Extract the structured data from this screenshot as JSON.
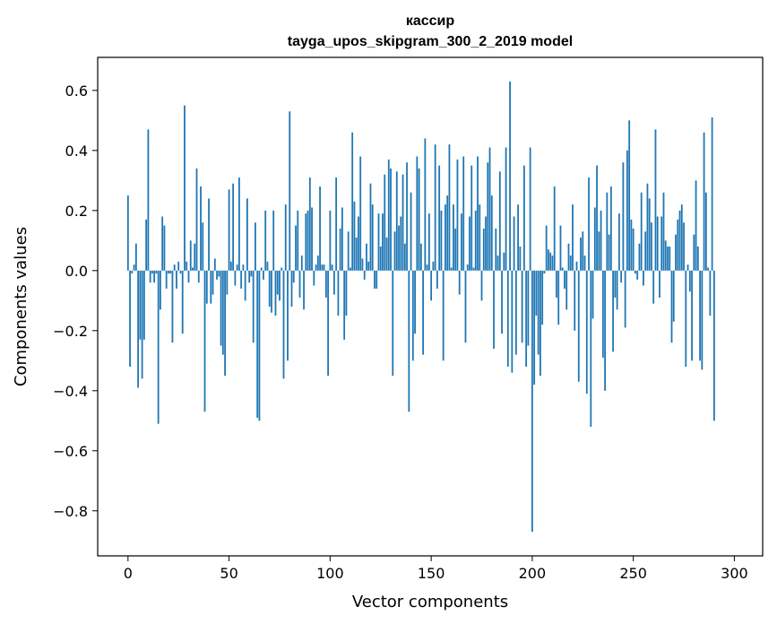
{
  "chart_data": {
    "type": "bar",
    "title": "кассир",
    "subtitle": "tayga_upos_skipgram_300_2_2019 model",
    "xlabel": "Vector components",
    "ylabel": "Components values",
    "xlim": [
      -15,
      314
    ],
    "ylim": [
      -0.95,
      0.71
    ],
    "xticks": [
      0,
      50,
      100,
      150,
      200,
      250,
      300
    ],
    "yticks": [
      -0.8,
      -0.6,
      -0.4,
      -0.2,
      0.0,
      0.2,
      0.4,
      0.6
    ],
    "ytick_labels": [
      "−0.8",
      "−0.6",
      "−0.4",
      "−0.2",
      "0.0",
      "0.2",
      "0.4",
      "0.6"
    ],
    "grid": false,
    "bar_color": "#1f77b4",
    "values": [
      0.25,
      -0.32,
      -0.01,
      0.02,
      0.09,
      -0.39,
      -0.23,
      -0.36,
      -0.23,
      0.17,
      0.47,
      -0.04,
      -0.01,
      -0.04,
      -0.01,
      -0.51,
      -0.13,
      0.18,
      0.15,
      -0.06,
      -0.01,
      -0.01,
      -0.24,
      0.02,
      -0.06,
      0.03,
      -0.01,
      -0.21,
      0.55,
      0.03,
      -0.04,
      0.1,
      0.01,
      0.09,
      0.34,
      -0.04,
      0.28,
      0.16,
      -0.47,
      -0.11,
      0.24,
      -0.11,
      -0.08,
      0.04,
      -0.03,
      -0.02,
      -0.25,
      -0.28,
      -0.35,
      -0.08,
      0.27,
      0.03,
      0.29,
      -0.05,
      0.02,
      0.31,
      -0.06,
      0.02,
      -0.1,
      0.24,
      -0.04,
      -0.02,
      -0.24,
      0.16,
      -0.49,
      -0.5,
      0.01,
      -0.03,
      0.2,
      0.03,
      -0.12,
      -0.14,
      0.2,
      -0.15,
      -0.08,
      -0.1,
      0.01,
      -0.36,
      0.22,
      -0.3,
      0.53,
      -0.12,
      -0.04,
      0.15,
      0.2,
      -0.09,
      0.05,
      -0.13,
      0.19,
      0.2,
      0.31,
      0.21,
      -0.05,
      0.02,
      0.05,
      0.28,
      0.02,
      0.02,
      -0.09,
      -0.35,
      0.2,
      0.02,
      -0.08,
      0.31,
      -0.15,
      0.14,
      0.21,
      -0.23,
      -0.15,
      0.13,
      0.01,
      0.46,
      0.23,
      0.11,
      0.18,
      0.38,
      0.04,
      -0.03,
      0.09,
      0.03,
      0.29,
      0.22,
      -0.06,
      -0.06,
      0.19,
      0.08,
      0.19,
      0.32,
      0.11,
      0.37,
      0.34,
      -0.35,
      0.13,
      0.33,
      0.15,
      0.18,
      0.32,
      0.09,
      0.36,
      -0.47,
      0.26,
      -0.3,
      -0.21,
      0.38,
      0.34,
      0.09,
      -0.28,
      0.44,
      0.02,
      0.19,
      -0.1,
      0.03,
      0.42,
      -0.06,
      0.35,
      0.2,
      -0.3,
      0.22,
      0.25,
      0.42,
      0.01,
      0.22,
      0.14,
      0.37,
      -0.08,
      0.19,
      0.38,
      -0.24,
      0.02,
      0.18,
      0.35,
      0.01,
      0.2,
      0.38,
      0.22,
      -0.1,
      0.14,
      0.18,
      0.36,
      0.41,
      0.25,
      -0.26,
      0.14,
      0.05,
      0.33,
      -0.21,
      0.06,
      0.41,
      -0.32,
      0.63,
      -0.34,
      0.18,
      -0.28,
      0.22,
      0.08,
      -0.24,
      0.35,
      -0.32,
      -0.25,
      0.41,
      -0.87,
      -0.38,
      -0.15,
      -0.28,
      -0.35,
      -0.18,
      -0.01,
      0.15,
      0.07,
      0.06,
      0.05,
      0.28,
      -0.09,
      -0.18,
      0.15,
      0.01,
      -0.06,
      -0.13,
      0.09,
      0.05,
      0.22,
      -0.2,
      0.03,
      -0.37,
      0.11,
      0.13,
      0.05,
      -0.41,
      0.31,
      -0.52,
      -0.16,
      0.21,
      0.35,
      0.13,
      0.2,
      -0.29,
      -0.4,
      0.26,
      0.12,
      0.28,
      -0.27,
      -0.09,
      -0.13,
      0.19,
      -0.04,
      0.36,
      -0.19,
      0.4,
      0.5,
      0.17,
      0.14,
      -0.01,
      -0.03,
      0.09,
      0.26,
      -0.05,
      0.13,
      0.29,
      0.24,
      0.16,
      -0.11,
      0.47,
      0.18,
      -0.09,
      0.18,
      0.26,
      0.1,
      0.08,
      0.08,
      -0.24,
      -0.17,
      0.12,
      0.17,
      0.2,
      0.22,
      0.16,
      -0.32,
      0.02,
      -0.07,
      -0.3,
      0.12,
      0.3,
      0.08,
      -0.3,
      -0.33,
      0.46,
      0.26,
      0.01,
      -0.15,
      0.51,
      -0.5
    ]
  }
}
